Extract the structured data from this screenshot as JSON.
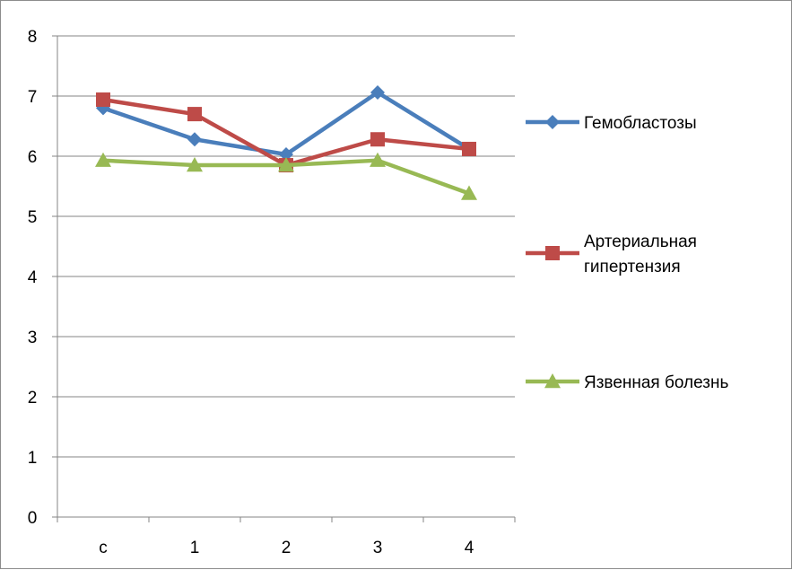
{
  "chart_data": {
    "type": "line",
    "title": "",
    "xlabel": "",
    "ylabel": "",
    "categories": [
      "с",
      "1",
      "2",
      "3",
      "4"
    ],
    "y_ticks": [
      "0",
      "1",
      "2",
      "3",
      "4",
      "5",
      "6",
      "7",
      "8"
    ],
    "ylim": [
      0,
      8
    ],
    "grid": true,
    "legend_position": "right",
    "series": [
      {
        "name": "Гемобластозы",
        "values": [
          6.8,
          6.28,
          6.03,
          7.06,
          6.12
        ],
        "color": "#4a7ebb",
        "marker": "diamond"
      },
      {
        "name": "Артериальная гипертензия",
        "name_lines": [
          "Артериальная",
          "гипертензия"
        ],
        "values": [
          6.94,
          6.7,
          5.85,
          6.28,
          6.12
        ],
        "color": "#be4b48",
        "marker": "square"
      },
      {
        "name": "Язвенная болезнь",
        "values": [
          5.93,
          5.85,
          5.85,
          5.93,
          5.38
        ],
        "color": "#98b954",
        "marker": "triangle"
      }
    ]
  }
}
